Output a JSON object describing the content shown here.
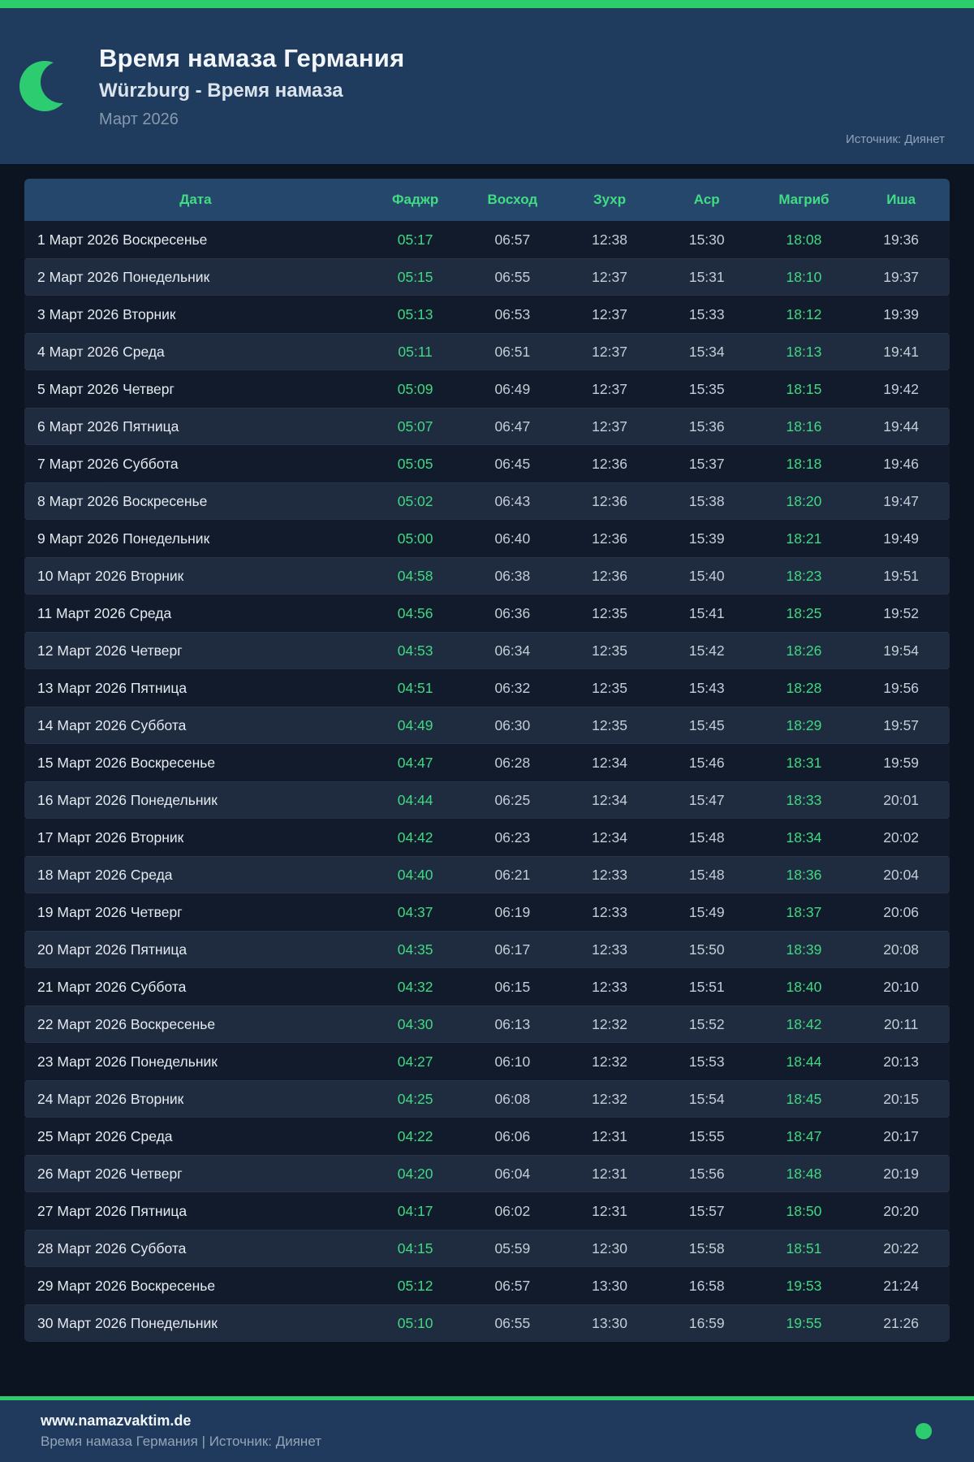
{
  "header": {
    "title": "Время намаза Германия",
    "subtitle": "Würzburg - Время намаза",
    "period": "Март 2026",
    "source": "Источник: Диянет"
  },
  "table": {
    "columns": [
      "Дата",
      "Фаджр",
      "Восход",
      "Зухр",
      "Аср",
      "Магриб",
      "Иша"
    ],
    "highlight_columns": [
      1,
      5
    ],
    "rows": [
      {
        "date": "1 Март 2026 Воскресенье",
        "times": [
          "05:17",
          "06:57",
          "12:38",
          "15:30",
          "18:08",
          "19:36"
        ]
      },
      {
        "date": "2 Март 2026 Понедельник",
        "times": [
          "05:15",
          "06:55",
          "12:37",
          "15:31",
          "18:10",
          "19:37"
        ]
      },
      {
        "date": "3 Март 2026 Вторник",
        "times": [
          "05:13",
          "06:53",
          "12:37",
          "15:33",
          "18:12",
          "19:39"
        ]
      },
      {
        "date": "4 Март 2026 Среда",
        "times": [
          "05:11",
          "06:51",
          "12:37",
          "15:34",
          "18:13",
          "19:41"
        ]
      },
      {
        "date": "5 Март 2026 Четверг",
        "times": [
          "05:09",
          "06:49",
          "12:37",
          "15:35",
          "18:15",
          "19:42"
        ]
      },
      {
        "date": "6 Март 2026 Пятница",
        "times": [
          "05:07",
          "06:47",
          "12:37",
          "15:36",
          "18:16",
          "19:44"
        ]
      },
      {
        "date": "7 Март 2026 Суббота",
        "times": [
          "05:05",
          "06:45",
          "12:36",
          "15:37",
          "18:18",
          "19:46"
        ]
      },
      {
        "date": "8 Март 2026 Воскресенье",
        "times": [
          "05:02",
          "06:43",
          "12:36",
          "15:38",
          "18:20",
          "19:47"
        ]
      },
      {
        "date": "9 Март 2026 Понедельник",
        "times": [
          "05:00",
          "06:40",
          "12:36",
          "15:39",
          "18:21",
          "19:49"
        ]
      },
      {
        "date": "10 Март 2026 Вторник",
        "times": [
          "04:58",
          "06:38",
          "12:36",
          "15:40",
          "18:23",
          "19:51"
        ]
      },
      {
        "date": "11 Март 2026 Среда",
        "times": [
          "04:56",
          "06:36",
          "12:35",
          "15:41",
          "18:25",
          "19:52"
        ]
      },
      {
        "date": "12 Март 2026 Четверг",
        "times": [
          "04:53",
          "06:34",
          "12:35",
          "15:42",
          "18:26",
          "19:54"
        ]
      },
      {
        "date": "13 Март 2026 Пятница",
        "times": [
          "04:51",
          "06:32",
          "12:35",
          "15:43",
          "18:28",
          "19:56"
        ]
      },
      {
        "date": "14 Март 2026 Суббота",
        "times": [
          "04:49",
          "06:30",
          "12:35",
          "15:45",
          "18:29",
          "19:57"
        ]
      },
      {
        "date": "15 Март 2026 Воскресенье",
        "times": [
          "04:47",
          "06:28",
          "12:34",
          "15:46",
          "18:31",
          "19:59"
        ]
      },
      {
        "date": "16 Март 2026 Понедельник",
        "times": [
          "04:44",
          "06:25",
          "12:34",
          "15:47",
          "18:33",
          "20:01"
        ]
      },
      {
        "date": "17 Март 2026 Вторник",
        "times": [
          "04:42",
          "06:23",
          "12:34",
          "15:48",
          "18:34",
          "20:02"
        ]
      },
      {
        "date": "18 Март 2026 Среда",
        "times": [
          "04:40",
          "06:21",
          "12:33",
          "15:48",
          "18:36",
          "20:04"
        ]
      },
      {
        "date": "19 Март 2026 Четверг",
        "times": [
          "04:37",
          "06:19",
          "12:33",
          "15:49",
          "18:37",
          "20:06"
        ]
      },
      {
        "date": "20 Март 2026 Пятница",
        "times": [
          "04:35",
          "06:17",
          "12:33",
          "15:50",
          "18:39",
          "20:08"
        ]
      },
      {
        "date": "21 Март 2026 Суббота",
        "times": [
          "04:32",
          "06:15",
          "12:33",
          "15:51",
          "18:40",
          "20:10"
        ]
      },
      {
        "date": "22 Март 2026 Воскресенье",
        "times": [
          "04:30",
          "06:13",
          "12:32",
          "15:52",
          "18:42",
          "20:11"
        ]
      },
      {
        "date": "23 Март 2026 Понедельник",
        "times": [
          "04:27",
          "06:10",
          "12:32",
          "15:53",
          "18:44",
          "20:13"
        ]
      },
      {
        "date": "24 Март 2026 Вторник",
        "times": [
          "04:25",
          "06:08",
          "12:32",
          "15:54",
          "18:45",
          "20:15"
        ]
      },
      {
        "date": "25 Март 2026 Среда",
        "times": [
          "04:22",
          "06:06",
          "12:31",
          "15:55",
          "18:47",
          "20:17"
        ]
      },
      {
        "date": "26 Март 2026 Четверг",
        "times": [
          "04:20",
          "06:04",
          "12:31",
          "15:56",
          "18:48",
          "20:19"
        ]
      },
      {
        "date": "27 Март 2026 Пятница",
        "times": [
          "04:17",
          "06:02",
          "12:31",
          "15:57",
          "18:50",
          "20:20"
        ]
      },
      {
        "date": "28 Март 2026 Суббота",
        "times": [
          "04:15",
          "05:59",
          "12:30",
          "15:58",
          "18:51",
          "20:22"
        ]
      },
      {
        "date": "29 Март 2026 Воскресенье",
        "times": [
          "05:12",
          "06:57",
          "13:30",
          "16:58",
          "19:53",
          "21:24"
        ]
      },
      {
        "date": "30 Март 2026 Понедельник",
        "times": [
          "05:10",
          "06:55",
          "13:30",
          "16:59",
          "19:55",
          "21:26"
        ]
      }
    ]
  },
  "footer": {
    "site": "www.namazvaktim.de",
    "tagline": "Время намаза Германия | Источник: Диянет"
  },
  "colors": {
    "accent_green": "#2bce6b",
    "moon_green": "#2ecc71",
    "header_bg": "#1f3c5f",
    "table_header_bg": "#25476c",
    "table_header_text": "#41dd82",
    "row_odd_bg": "#121b2b",
    "row_even_bg": "#1f2b3f",
    "time_highlight": "#3eda81",
    "time_default": "#c4cdd6",
    "page_bg": "#0c1422",
    "footer_bg": "#1f3a5c"
  },
  "icons": {
    "moon": "crescent-moon-icon",
    "footer_dot": "green-dot"
  }
}
